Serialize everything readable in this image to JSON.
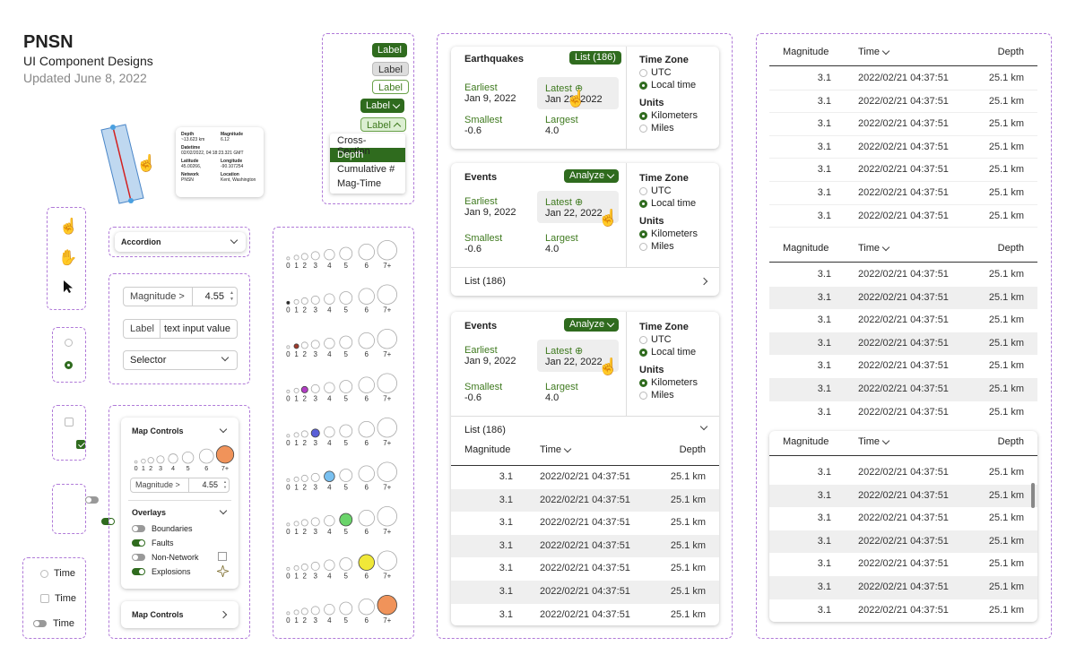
{
  "header": {
    "brand": "PNSN",
    "title": "UI Component Designs",
    "updated": "Updated June 8, 2022"
  },
  "tooltip": {
    "depth_label": "Depth",
    "depth_value": "~13.623 km",
    "mag_label": "Magnitude",
    "mag_value": "6.12",
    "datetime_label": "Datetime",
    "datetime_value": "02/02/2022, 04:18:23.321 GMT",
    "lat_label": "Latitude",
    "lat_value": "45.00266,",
    "lon_label": "Longitude",
    "lon_value": "-90.107254",
    "net_label": "Network",
    "net_value": "PNSN",
    "loc_label": "Location",
    "loc_value": "Kent, Washington"
  },
  "chips": {
    "label1": "Label",
    "label2": "Label",
    "label3": "Label",
    "label4": "Label",
    "label5": "Label"
  },
  "menu": {
    "items": [
      "Cross-Section",
      "Depth",
      "Cumulative #",
      "Mag-Time"
    ],
    "selected": "Depth"
  },
  "accordion": {
    "label": "Accordion"
  },
  "inputs": {
    "magnitude_label": "Magnitude >",
    "magnitude_value": "4.55",
    "field_label": "Label",
    "field_value": "text input value",
    "selector": "Selector"
  },
  "map_controls": {
    "title": "Map Controls",
    "mag_label": "Magnitude >",
    "mag_value": "4.55",
    "overlays_title": "Overlays",
    "overlays": [
      {
        "label": "Boundaries",
        "on": false
      },
      {
        "label": "Faults",
        "on": true
      },
      {
        "label": "Non-Network",
        "on": false
      },
      {
        "label": "Explosions",
        "on": true
      }
    ],
    "collapsed_title": "Map Controls"
  },
  "toggle_demo": {
    "time1": "Time",
    "time2": "Time",
    "time3": "Time"
  },
  "mag_scale": {
    "labels": [
      "0",
      "1",
      "2",
      "3",
      "4",
      "5",
      "6",
      "7+"
    ],
    "rows": [
      {
        "highlight": -1,
        "color": ""
      },
      {
        "highlight": 0,
        "color": "#222222"
      },
      {
        "highlight": 1,
        "color": "#a0392a"
      },
      {
        "highlight": 2,
        "color": "#b23cc4"
      },
      {
        "highlight": 3,
        "color": "#5a5fd8"
      },
      {
        "highlight": 4,
        "color": "#79c0f0"
      },
      {
        "highlight": 5,
        "color": "#6ad46a"
      },
      {
        "highlight": 6,
        "color": "#f0e838"
      },
      {
        "highlight": 7,
        "color": "#f0935a"
      }
    ]
  },
  "panel1": {
    "title": "Earthquakes",
    "badge": "List (186)",
    "earliest_label": "Earliest",
    "earliest_value": "Jan 9, 2022",
    "latest_label": "Latest",
    "latest_value": "Jan 22, 2022",
    "smallest_label": "Smallest",
    "smallest_value": "-0.6",
    "largest_label": "Largest",
    "largest_value": "4.0",
    "tz_title": "Time Zone",
    "tz_utc": "UTC",
    "tz_local": "Local time",
    "units_title": "Units",
    "unit_km": "Kilometers",
    "unit_mi": "Miles"
  },
  "panel2": {
    "title": "Events",
    "badge": "Analyze",
    "earliest_label": "Earliest",
    "earliest_value": "Jan 9, 2022",
    "latest_label": "Latest",
    "latest_value": "Jan 22, 2022",
    "smallest_label": "Smallest",
    "smallest_value": "-0.6",
    "largest_label": "Largest",
    "largest_value": "4.0",
    "tz_title": "Time Zone",
    "tz_utc": "UTC",
    "tz_local": "Local time",
    "units_title": "Units",
    "unit_km": "Kilometers",
    "unit_mi": "Miles",
    "list_label": "List (186)"
  },
  "panel3": {
    "title": "Events",
    "badge": "Analyze",
    "earliest_label": "Earliest",
    "earliest_value": "Jan 9, 2022",
    "latest_label": "Latest",
    "latest_value": "Jan 22, 2022",
    "smallest_label": "Smallest",
    "smallest_value": "-0.6",
    "largest_label": "Largest",
    "largest_value": "4.0",
    "tz_title": "Time Zone",
    "tz_utc": "UTC",
    "tz_local": "Local time",
    "units_title": "Units",
    "unit_km": "Kilometers",
    "unit_mi": "Miles",
    "list_label": "List (186)"
  },
  "table": {
    "columns": [
      "Magnitude",
      "Time",
      "Depth"
    ],
    "rows": [
      {
        "mag": "3.1",
        "time": "2022/02/21 04:37:51",
        "depth": "25.1 km"
      },
      {
        "mag": "3.1",
        "time": "2022/02/21 04:37:51",
        "depth": "25.1 km"
      },
      {
        "mag": "3.1",
        "time": "2022/02/21 04:37:51",
        "depth": "25.1 km"
      },
      {
        "mag": "3.1",
        "time": "2022/02/21 04:37:51",
        "depth": "25.1 km"
      },
      {
        "mag": "3.1",
        "time": "2022/02/21 04:37:51",
        "depth": "25.1 km"
      },
      {
        "mag": "3.1",
        "time": "2022/02/21 04:37:51",
        "depth": "25.1 km"
      },
      {
        "mag": "3.1",
        "time": "2022/02/21 04:37:51",
        "depth": "25.1 km"
      }
    ]
  },
  "colors": {
    "accent": "#2f6b1e",
    "dash": "#b07ad8",
    "alt_row": "#efefef"
  }
}
